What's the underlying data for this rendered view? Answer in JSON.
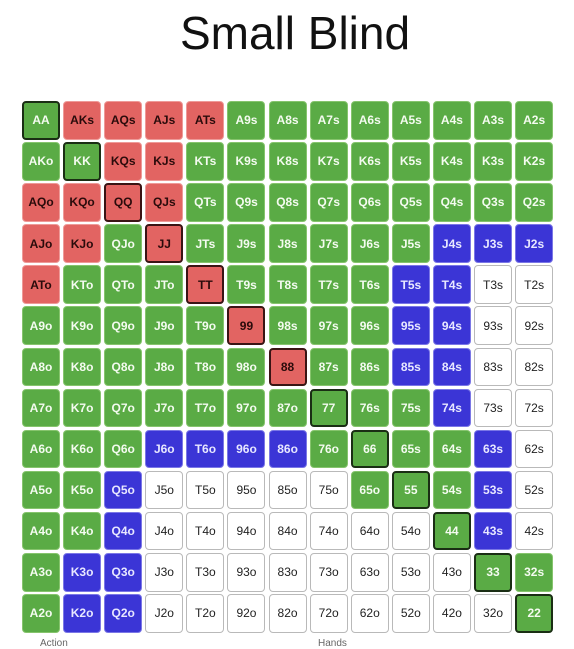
{
  "title": "Small Blind",
  "colors": {
    "green": "#5aab45",
    "red": "#e26462",
    "blue": "#3b35d6",
    "white": "#ffffff"
  },
  "footer": {
    "left": "Action",
    "right": "Hands"
  },
  "grid": [
    [
      [
        "AA",
        "green"
      ],
      [
        "AKs",
        "red"
      ],
      [
        "AQs",
        "red"
      ],
      [
        "AJs",
        "red"
      ],
      [
        "ATs",
        "red"
      ],
      [
        "A9s",
        "green"
      ],
      [
        "A8s",
        "green"
      ],
      [
        "A7s",
        "green"
      ],
      [
        "A6s",
        "green"
      ],
      [
        "A5s",
        "green"
      ],
      [
        "A4s",
        "green"
      ],
      [
        "A3s",
        "green"
      ],
      [
        "A2s",
        "green"
      ]
    ],
    [
      [
        "AKo",
        "green"
      ],
      [
        "KK",
        "green"
      ],
      [
        "KQs",
        "red"
      ],
      [
        "KJs",
        "red"
      ],
      [
        "KTs",
        "green"
      ],
      [
        "K9s",
        "green"
      ],
      [
        "K8s",
        "green"
      ],
      [
        "K7s",
        "green"
      ],
      [
        "K6s",
        "green"
      ],
      [
        "K5s",
        "green"
      ],
      [
        "K4s",
        "green"
      ],
      [
        "K3s",
        "green"
      ],
      [
        "K2s",
        "green"
      ]
    ],
    [
      [
        "AQo",
        "red"
      ],
      [
        "KQo",
        "red"
      ],
      [
        "QQ",
        "red"
      ],
      [
        "QJs",
        "red"
      ],
      [
        "QTs",
        "green"
      ],
      [
        "Q9s",
        "green"
      ],
      [
        "Q8s",
        "green"
      ],
      [
        "Q7s",
        "green"
      ],
      [
        "Q6s",
        "green"
      ],
      [
        "Q5s",
        "green"
      ],
      [
        "Q4s",
        "green"
      ],
      [
        "Q3s",
        "green"
      ],
      [
        "Q2s",
        "green"
      ]
    ],
    [
      [
        "AJo",
        "red"
      ],
      [
        "KJo",
        "red"
      ],
      [
        "QJo",
        "green"
      ],
      [
        "JJ",
        "red"
      ],
      [
        "JTs",
        "green"
      ],
      [
        "J9s",
        "green"
      ],
      [
        "J8s",
        "green"
      ],
      [
        "J7s",
        "green"
      ],
      [
        "J6s",
        "green"
      ],
      [
        "J5s",
        "green"
      ],
      [
        "J4s",
        "blue"
      ],
      [
        "J3s",
        "blue"
      ],
      [
        "J2s",
        "blue"
      ]
    ],
    [
      [
        "ATo",
        "red"
      ],
      [
        "KTo",
        "green"
      ],
      [
        "QTo",
        "green"
      ],
      [
        "JTo",
        "green"
      ],
      [
        "TT",
        "red"
      ],
      [
        "T9s",
        "green"
      ],
      [
        "T8s",
        "green"
      ],
      [
        "T7s",
        "green"
      ],
      [
        "T6s",
        "green"
      ],
      [
        "T5s",
        "blue"
      ],
      [
        "T4s",
        "blue"
      ],
      [
        "T3s",
        "white"
      ],
      [
        "T2s",
        "white"
      ]
    ],
    [
      [
        "A9o",
        "green"
      ],
      [
        "K9o",
        "green"
      ],
      [
        "Q9o",
        "green"
      ],
      [
        "J9o",
        "green"
      ],
      [
        "T9o",
        "green"
      ],
      [
        "99",
        "red"
      ],
      [
        "98s",
        "green"
      ],
      [
        "97s",
        "green"
      ],
      [
        "96s",
        "green"
      ],
      [
        "95s",
        "blue"
      ],
      [
        "94s",
        "blue"
      ],
      [
        "93s",
        "white"
      ],
      [
        "92s",
        "white"
      ]
    ],
    [
      [
        "A8o",
        "green"
      ],
      [
        "K8o",
        "green"
      ],
      [
        "Q8o",
        "green"
      ],
      [
        "J8o",
        "green"
      ],
      [
        "T8o",
        "green"
      ],
      [
        "98o",
        "green"
      ],
      [
        "88",
        "red"
      ],
      [
        "87s",
        "green"
      ],
      [
        "86s",
        "green"
      ],
      [
        "85s",
        "blue"
      ],
      [
        "84s",
        "blue"
      ],
      [
        "83s",
        "white"
      ],
      [
        "82s",
        "white"
      ]
    ],
    [
      [
        "A7o",
        "green"
      ],
      [
        "K7o",
        "green"
      ],
      [
        "Q7o",
        "green"
      ],
      [
        "J7o",
        "green"
      ],
      [
        "T7o",
        "green"
      ],
      [
        "97o",
        "green"
      ],
      [
        "87o",
        "green"
      ],
      [
        "77",
        "green"
      ],
      [
        "76s",
        "green"
      ],
      [
        "75s",
        "green"
      ],
      [
        "74s",
        "blue"
      ],
      [
        "73s",
        "white"
      ],
      [
        "72s",
        "white"
      ]
    ],
    [
      [
        "A6o",
        "green"
      ],
      [
        "K6o",
        "green"
      ],
      [
        "Q6o",
        "green"
      ],
      [
        "J6o",
        "blue"
      ],
      [
        "T6o",
        "blue"
      ],
      [
        "96o",
        "blue"
      ],
      [
        "86o",
        "blue"
      ],
      [
        "76o",
        "green"
      ],
      [
        "66",
        "green"
      ],
      [
        "65s",
        "green"
      ],
      [
        "64s",
        "green"
      ],
      [
        "63s",
        "blue"
      ],
      [
        "62s",
        "white"
      ]
    ],
    [
      [
        "A5o",
        "green"
      ],
      [
        "K5o",
        "green"
      ],
      [
        "Q5o",
        "blue"
      ],
      [
        "J5o",
        "white"
      ],
      [
        "T5o",
        "white"
      ],
      [
        "95o",
        "white"
      ],
      [
        "85o",
        "white"
      ],
      [
        "75o",
        "white"
      ],
      [
        "65o",
        "green"
      ],
      [
        "55",
        "green"
      ],
      [
        "54s",
        "green"
      ],
      [
        "53s",
        "blue"
      ],
      [
        "52s",
        "white"
      ]
    ],
    [
      [
        "A4o",
        "green"
      ],
      [
        "K4o",
        "green"
      ],
      [
        "Q4o",
        "blue"
      ],
      [
        "J4o",
        "white"
      ],
      [
        "T4o",
        "white"
      ],
      [
        "94o",
        "white"
      ],
      [
        "84o",
        "white"
      ],
      [
        "74o",
        "white"
      ],
      [
        "64o",
        "white"
      ],
      [
        "54o",
        "white"
      ],
      [
        "44",
        "green"
      ],
      [
        "43s",
        "blue"
      ],
      [
        "42s",
        "white"
      ]
    ],
    [
      [
        "A3o",
        "green"
      ],
      [
        "K3o",
        "blue"
      ],
      [
        "Q3o",
        "blue"
      ],
      [
        "J3o",
        "white"
      ],
      [
        "T3o",
        "white"
      ],
      [
        "93o",
        "white"
      ],
      [
        "83o",
        "white"
      ],
      [
        "73o",
        "white"
      ],
      [
        "63o",
        "white"
      ],
      [
        "53o",
        "white"
      ],
      [
        "43o",
        "white"
      ],
      [
        "33",
        "green"
      ],
      [
        "32s",
        "green"
      ]
    ],
    [
      [
        "A2o",
        "green"
      ],
      [
        "K2o",
        "blue"
      ],
      [
        "Q2o",
        "blue"
      ],
      [
        "J2o",
        "white"
      ],
      [
        "T2o",
        "white"
      ],
      [
        "92o",
        "white"
      ],
      [
        "82o",
        "white"
      ],
      [
        "72o",
        "white"
      ],
      [
        "62o",
        "white"
      ],
      [
        "52o",
        "white"
      ],
      [
        "42o",
        "white"
      ],
      [
        "32o",
        "white"
      ],
      [
        "22",
        "green"
      ]
    ]
  ]
}
